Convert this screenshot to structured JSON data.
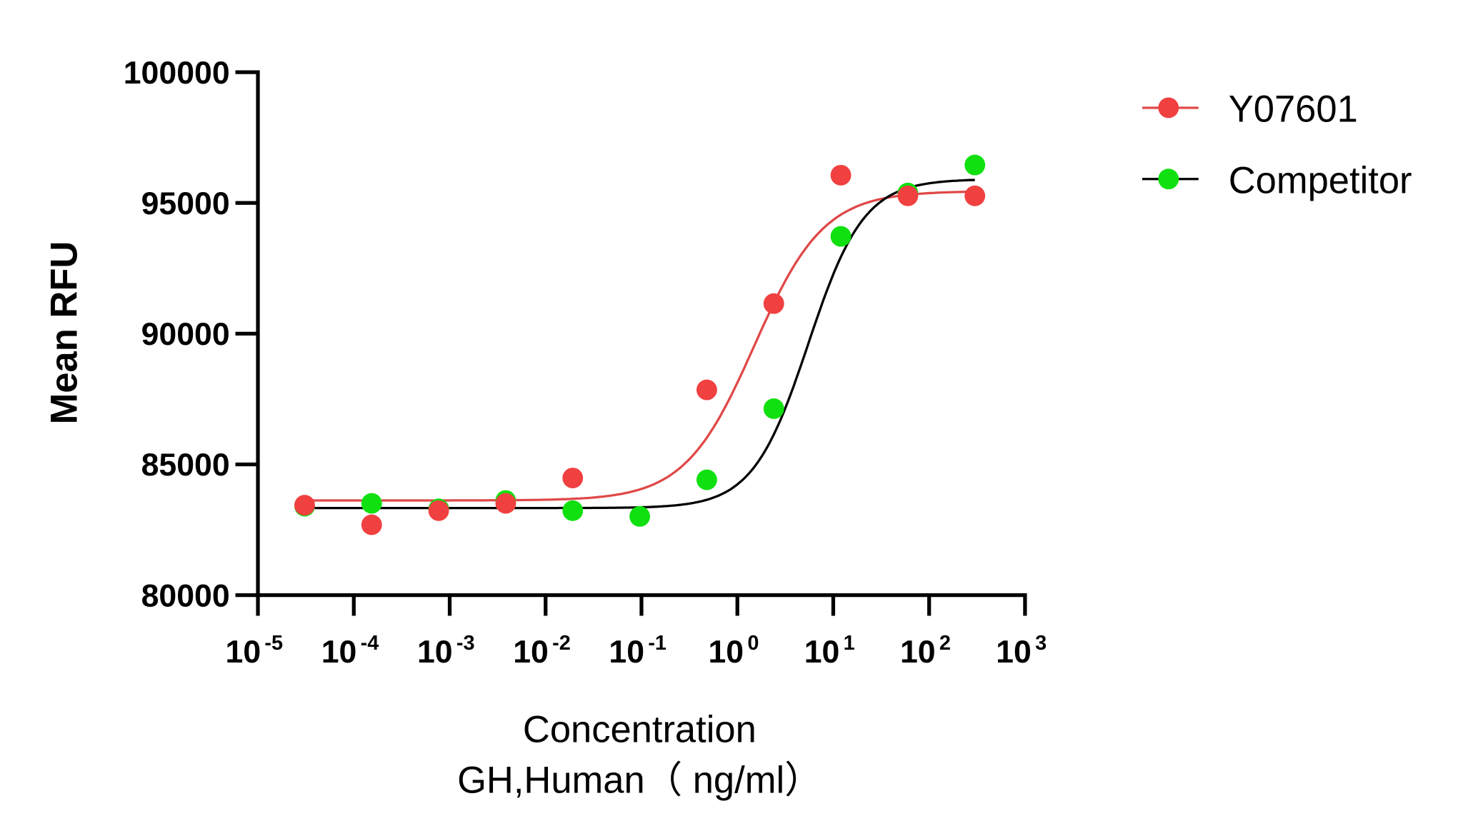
{
  "chart_data": {
    "type": "scatter",
    "xlabel": "Concentration",
    "xlabel2": "GH,Human（ ng/ml）",
    "ylabel": "Mean RFU",
    "xscale": "log",
    "xlim": [
      1e-05,
      1000
    ],
    "ylim": [
      80000,
      100000
    ],
    "yticks": [
      "80000",
      "85000",
      "90000",
      "95000",
      "100000"
    ],
    "xticks": [
      {
        "base": "10",
        "exp": "-5"
      },
      {
        "base": "10",
        "exp": "-4"
      },
      {
        "base": "10",
        "exp": "-3"
      },
      {
        "base": "10",
        "exp": "-2"
      },
      {
        "base": "10",
        "exp": "-1"
      },
      {
        "base": "10",
        "exp": "0"
      },
      {
        "base": "10",
        "exp": "1"
      },
      {
        "base": "10",
        "exp": "2"
      },
      {
        "base": "10",
        "exp": "3"
      }
    ],
    "grid": false,
    "legend_position": "top-right",
    "series": [
      {
        "name": "Y07601",
        "marker_color": "#f04040",
        "line_color": "#e04848",
        "x": [
          3.072e-05,
          0.0001536,
          0.000768,
          0.00384,
          0.0192,
          0.48,
          2.4,
          12,
          60,
          300
        ],
        "y": [
          83440,
          82690,
          83230,
          83510,
          84480,
          87850,
          91150,
          96060,
          95270,
          95270
        ],
        "fit": {
          "bottom": 83620,
          "top": 95450,
          "ec50": 1.5,
          "hill": 1.2
        }
      },
      {
        "name": "Competitor",
        "marker_color": "#10e010",
        "line_color": "#000000",
        "x": [
          3.072e-05,
          0.0001536,
          0.000768,
          0.00384,
          0.0192,
          0.096,
          0.48,
          2.4,
          12,
          60,
          300
        ],
        "y": [
          83400,
          83510,
          83300,
          83620,
          83230,
          83010,
          84410,
          87130,
          93720,
          95380,
          96450
        ],
        "fit": {
          "bottom": 83330,
          "top": 95910,
          "ec50": 5.5,
          "hill": 1.5
        }
      }
    ]
  }
}
